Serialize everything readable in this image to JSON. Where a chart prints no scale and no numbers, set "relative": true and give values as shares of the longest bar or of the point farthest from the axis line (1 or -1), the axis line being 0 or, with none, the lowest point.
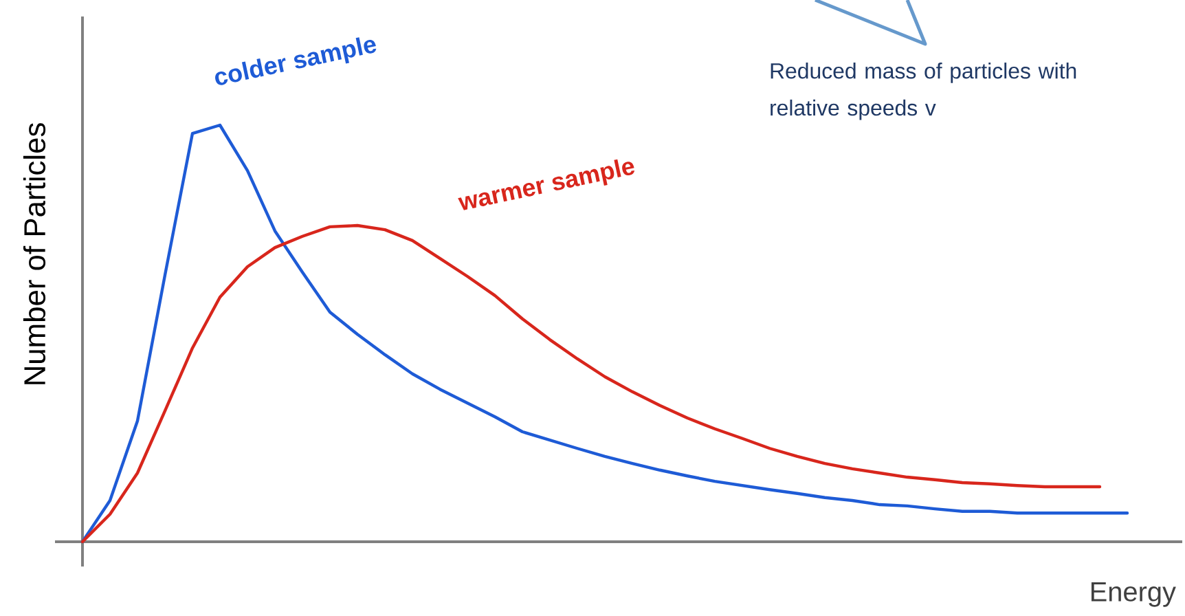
{
  "chart_data": {
    "type": "line",
    "relative": true,
    "xlabel": "Energy",
    "ylabel": "Number of Particles",
    "categories": [
      null,
      null,
      null,
      null,
      null,
      null,
      null,
      null,
      null,
      null,
      null,
      null,
      null,
      null,
      null,
      null,
      null,
      null,
      null,
      null,
      null,
      null,
      null,
      null,
      null,
      null,
      null,
      null,
      null,
      null,
      null,
      null,
      null,
      null,
      null,
      null,
      null,
      null,
      null
    ],
    "series": [
      {
        "name": "colder sample",
        "color": "#1e5bd6",
        "values": [
          0,
          0.099,
          0.29,
          0.64,
          0.98,
          1,
          0.891,
          0.746,
          0.647,
          0.551,
          0.498,
          0.449,
          0.403,
          0.366,
          0.333,
          0.3,
          0.264,
          0.244,
          0.224,
          0.205,
          0.188,
          0.172,
          0.158,
          0.145,
          0.135,
          0.125,
          0.116,
          0.106,
          0.099,
          0.089,
          0.086,
          0.079,
          0.073,
          0.073,
          0.069,
          0.069,
          0.069,
          0.069,
          0.069
        ]
      },
      {
        "name": "warmer sample",
        "color": "#d8261c",
        "values": [
          0,
          0.066,
          0.165,
          0.314,
          0.465,
          0.587,
          0.66,
          0.706,
          0.733,
          0.756,
          0.759,
          0.749,
          0.723,
          0.68,
          0.637,
          0.591,
          0.535,
          0.485,
          0.439,
          0.396,
          0.36,
          0.327,
          0.297,
          0.271,
          0.248,
          0.224,
          0.205,
          0.188,
          0.175,
          0.165,
          0.155,
          0.149,
          0.142,
          0.139,
          0.135,
          0.132,
          0.132,
          0.132,
          null
        ]
      }
    ],
    "annotations": [
      "Reduced mass of particles with relative speeds v"
    ]
  }
}
